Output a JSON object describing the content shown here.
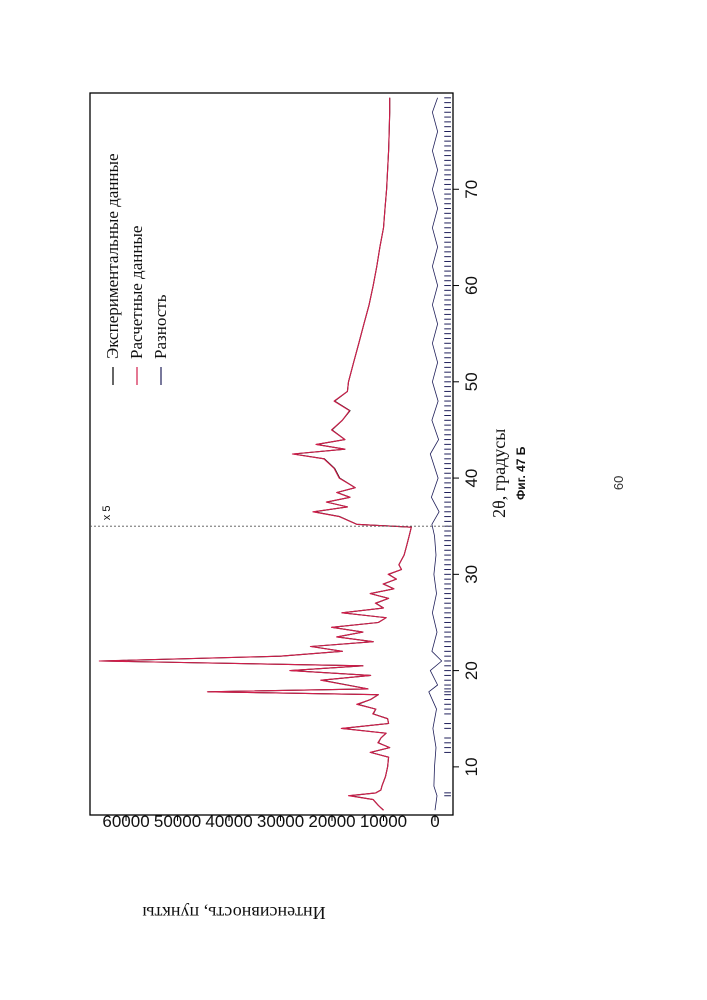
{
  "chart_data": {
    "type": "line",
    "xlabel": "2θ, градусы",
    "ylabel": "Интенсивность, пункты",
    "xlim": [
      5,
      80
    ],
    "ylim": [
      -3500,
      67000
    ],
    "x_ticks": [
      10,
      20,
      30,
      40,
      50,
      60,
      70
    ],
    "y_ticks": [
      0,
      10000,
      20000,
      30000,
      40000,
      50000,
      60000
    ],
    "x_tick_labels": [
      "10",
      "20",
      "30",
      "40",
      "50",
      "60",
      "70"
    ],
    "y_tick_labels": [
      "0",
      "10000",
      "20000",
      "30000",
      "40000",
      "50000",
      "60000"
    ],
    "scale_break": {
      "x": 35.0,
      "label": "x 5"
    },
    "legend": {
      "position": "top-right",
      "entries": [
        {
          "label": "Экспериментальные данные",
          "color": "#000000"
        },
        {
          "label": "Расчетные данные",
          "color": "#d21e4b"
        },
        {
          "label": "Разность",
          "color": "#1f1f5a"
        }
      ]
    },
    "series": [
      {
        "name": "Экспериментальные данные",
        "color": "#000000",
        "x": [
          5.5,
          6.0,
          6.6,
          7.0,
          7.3,
          7.6,
          8.0,
          9.0,
          10.0,
          11.0,
          11.5,
          12.0,
          12.5,
          13.0,
          13.5,
          14.0,
          14.5,
          15.0,
          15.5,
          16.0,
          16.5,
          17.0,
          17.5,
          17.8,
          18.1,
          18.5,
          19.0,
          19.5,
          20.0,
          20.5,
          21.0,
          21.5,
          22.0,
          22.5,
          23.0,
          23.5,
          24.0,
          24.5,
          25.0,
          25.5,
          26.0,
          26.5,
          27.0,
          27.5,
          28.0,
          28.5,
          29.0,
          29.5,
          30.0,
          30.5,
          31.0,
          31.5,
          32.0,
          33.0,
          34.0,
          34.9,
          35.2,
          36.0,
          36.5,
          37.0,
          37.5,
          38.0,
          38.5,
          39.0,
          40.0,
          41.0,
          42.0,
          42.5,
          43.0,
          43.5,
          44.0,
          45.0,
          46.0,
          47.0,
          48.0,
          49.0,
          50.0,
          52.0,
          54.0,
          56.0,
          58.0,
          60.0,
          62.0,
          64.0,
          66.0,
          68.0,
          70.0,
          72.0,
          74.0,
          76.0,
          78.0,
          79.5
        ],
        "y": [
          10000,
          11000,
          12000,
          16500,
          11500,
          10500,
          10300,
          9600,
          9200,
          9000,
          12500,
          8800,
          11000,
          10500,
          9500,
          18000,
          9000,
          9200,
          12000,
          11500,
          15000,
          12500,
          11000,
          44000,
          13000,
          17000,
          22000,
          12500,
          28000,
          14000,
          65000,
          30000,
          18000,
          24000,
          12000,
          19000,
          14000,
          20000,
          11000,
          9500,
          18000,
          10000,
          11500,
          9000,
          12500,
          8000,
          10000,
          7500,
          9000,
          6500,
          7000,
          6500,
          6000,
          5500,
          5000,
          4600,
          15200,
          18500,
          23500,
          17000,
          21000,
          16500,
          19000,
          15500,
          18500,
          19500,
          21500,
          27500,
          17500,
          23000,
          17500,
          20000,
          18000,
          16500,
          19500,
          17000,
          16800,
          15800,
          14800,
          13800,
          12800,
          12000,
          11300,
          10700,
          10000,
          9700,
          9400,
          9200,
          9000,
          8900,
          8800,
          8800
        ]
      },
      {
        "name": "Расчетные данные",
        "color": "#d21e4b",
        "x": [
          5.5,
          6.0,
          6.6,
          7.0,
          7.3,
          7.6,
          8.0,
          9.0,
          10.0,
          11.0,
          11.5,
          12.0,
          12.5,
          13.0,
          13.5,
          14.0,
          14.5,
          15.0,
          15.5,
          16.0,
          16.5,
          17.0,
          17.5,
          17.8,
          18.1,
          18.5,
          19.0,
          19.5,
          20.0,
          20.5,
          21.0,
          21.5,
          22.0,
          22.5,
          23.0,
          23.5,
          24.0,
          24.5,
          25.0,
          25.5,
          26.0,
          26.5,
          27.0,
          27.5,
          28.0,
          28.5,
          29.0,
          29.5,
          30.0,
          30.5,
          31.0,
          31.5,
          32.0,
          33.0,
          34.0,
          34.9,
          35.2,
          36.0,
          36.5,
          37.0,
          37.5,
          38.0,
          38.5,
          39.0,
          40.0,
          41.0,
          42.0,
          42.5,
          43.0,
          43.5,
          44.0,
          45.0,
          46.0,
          47.0,
          48.0,
          49.0,
          50.0,
          52.0,
          54.0,
          56.0,
          58.0,
          60.0,
          62.0,
          64.0,
          66.0,
          68.0,
          70.0,
          72.0,
          74.0,
          76.0,
          78.0,
          79.5
        ],
        "y": [
          10000,
          11000,
          12000,
          16800,
          11500,
          10500,
          10300,
          9600,
          9200,
          9000,
          12600,
          8800,
          11100,
          10500,
          9500,
          18200,
          9000,
          9200,
          12100,
          11500,
          15200,
          12500,
          11000,
          44200,
          13000,
          17200,
          22200,
          12500,
          28200,
          14000,
          65200,
          30200,
          18000,
          24200,
          12000,
          19100,
          14000,
          20100,
          11000,
          9500,
          18100,
          10000,
          11600,
          9000,
          12600,
          8000,
          10100,
          7500,
          9100,
          6500,
          7000,
          6500,
          6000,
          5500,
          5000,
          4600,
          15200,
          18600,
          23700,
          17000,
          21100,
          16500,
          19100,
          15500,
          18600,
          19600,
          21600,
          27700,
          17500,
          23100,
          17500,
          20100,
          18000,
          16600,
          19600,
          17000,
          16800,
          15800,
          14800,
          13800,
          12800,
          12000,
          11300,
          10700,
          10000,
          9700,
          9400,
          9200,
          9000,
          8900,
          8800,
          8800
        ]
      },
      {
        "name": "Разность",
        "color": "#1f1f5a",
        "x": [
          5.5,
          7.0,
          8.0,
          10.0,
          12.0,
          14.0,
          16.0,
          17.8,
          18.5,
          20.0,
          21.0,
          22.0,
          24.0,
          26.0,
          28.0,
          30.0,
          32.0,
          34.0,
          35.2,
          36.5,
          38.0,
          40.0,
          42.5,
          44.0,
          46.0,
          48.0,
          50.0,
          52.0,
          54.0,
          56.0,
          58.0,
          60.0,
          62.0,
          64.0,
          66.0,
          68.0,
          70.0,
          72.0,
          74.0,
          76.0,
          78.0,
          79.5
        ],
        "y": [
          0,
          -400,
          200,
          100,
          -200,
          400,
          -300,
          1200,
          -500,
          900,
          -1300,
          600,
          -400,
          500,
          -300,
          200,
          -200,
          100,
          600,
          -800,
          700,
          -600,
          900,
          -700,
          600,
          -600,
          500,
          -500,
          500,
          -500,
          500,
          -500,
          500,
          -500,
          500,
          -500,
          500,
          -500,
          500,
          -500,
          500,
          -500
        ]
      }
    ],
    "reflection_positions": [
      7.0,
      7.3,
      11.5,
      12.0,
      12.5,
      13.0,
      14.0,
      14.5,
      15.5,
      16.0,
      16.5,
      17.0,
      17.5,
      17.8,
      18.1,
      18.5,
      19.0,
      19.5,
      20.0,
      20.5,
      21.0,
      21.5,
      22.0,
      22.5,
      23.0,
      23.5,
      24.0,
      24.5,
      25.0,
      25.5,
      26.0,
      26.5,
      27.0,
      27.5,
      28.0,
      28.5,
      29.0,
      29.5,
      30.0,
      30.5,
      31.0,
      31.5,
      32.0,
      32.5,
      33.0,
      33.5,
      34.0,
      34.5,
      35.0,
      35.5,
      36.0,
      36.5,
      37.0,
      37.5,
      38.0,
      38.5,
      39.0,
      39.5,
      40.0,
      40.5,
      41.0,
      41.5,
      42.0,
      42.5,
      43.0,
      43.5,
      44.0,
      44.5,
      45.0,
      45.5,
      46.0,
      46.5,
      47.0,
      47.5,
      48.0,
      48.5,
      49.0,
      49.5,
      50.0,
      50.5,
      51.0,
      51.5,
      52.0,
      52.5,
      53.0,
      53.5,
      54.0,
      54.5,
      55.0,
      55.5,
      56.0,
      56.5,
      57.0,
      57.5,
      58.0,
      58.5,
      59.0,
      59.5,
      60.0,
      60.5,
      61.0,
      61.5,
      62.0,
      62.5,
      63.0,
      63.5,
      64.0,
      64.5,
      65.0,
      65.5,
      66.0,
      66.5,
      67.0,
      67.5,
      68.0,
      68.5,
      69.0,
      69.5,
      70.0,
      70.5,
      71.0,
      71.5,
      72.0,
      72.5,
      73.0,
      73.5,
      74.0,
      74.5,
      75.0,
      75.5,
      76.0,
      76.5,
      77.0,
      77.5,
      78.0,
      78.5,
      79.0,
      79.5
    ]
  },
  "figure_caption": "Фиг. 47 Б",
  "page_number": "60"
}
